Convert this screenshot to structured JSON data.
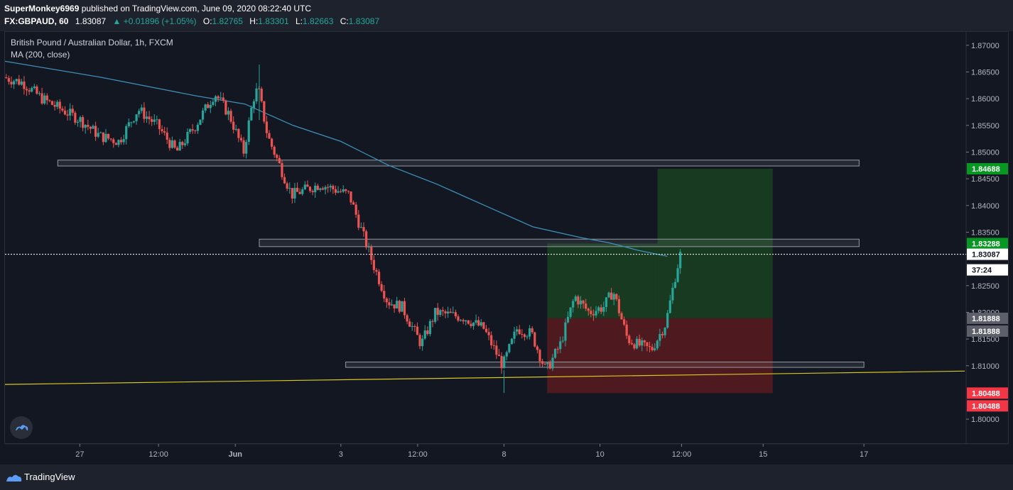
{
  "header": {
    "author": "SuperMonkey6969",
    "published": "published on TradingView.com, June 09, 2020 08:22:40 UTC",
    "symbol": "FX:GBPAUD, 60",
    "last": "1.83087",
    "change_arrow": "▲",
    "change": "+0.01896 (+1.05%)",
    "o_label": "O:",
    "o_value": "1.82765",
    "h_label": "H:",
    "h_value": "1.83301",
    "l_label": "L:",
    "l_value": "1.82663",
    "c_label": "C:",
    "c_value": "1.83087"
  },
  "legend": {
    "title": "British Pound / Australian Dollar, 1h, FXCM",
    "ma": "MA (200, close)"
  },
  "footer": {
    "brand": "TradingView"
  },
  "colors": {
    "background": "#131722",
    "up": "#26a69a",
    "down": "#ef5350",
    "ma": "#3d8fb8",
    "trendline": "#d8c623",
    "target_zone": "#1b5e20",
    "stop_zone": "#7f1d1d",
    "target_label": "#089722",
    "stop_label": "#f23645",
    "entry_label": "#5d606b"
  },
  "chart_data": {
    "type": "candlestick",
    "timeframe": "1h",
    "ylim": [
      1.7955,
      1.8725
    ],
    "price_ticks": [
      "1.87000",
      "1.86500",
      "1.86000",
      "1.85500",
      "1.85000",
      "1.84500",
      "1.84000",
      "1.83500",
      "1.82500",
      "1.82000",
      "1.81500",
      "1.81000",
      "1.80000"
    ],
    "x_ticks": [
      "27",
      "12:00",
      "Jun",
      "3",
      "12:00",
      "8",
      "10",
      "12:00",
      "15",
      "17"
    ],
    "key_path": [
      [
        0,
        1.864
      ],
      [
        0.02,
        1.863
      ],
      [
        0.04,
        1.86
      ],
      [
        0.06,
        1.858
      ],
      [
        0.08,
        1.856
      ],
      [
        0.1,
        1.853
      ],
      [
        0.12,
        1.852
      ],
      [
        0.14,
        1.858
      ],
      [
        0.16,
        1.855
      ],
      [
        0.18,
        1.85
      ],
      [
        0.2,
        1.855
      ],
      [
        0.22,
        1.861
      ],
      [
        0.235,
        1.857
      ],
      [
        0.25,
        1.85
      ],
      [
        0.26,
        1.86
      ],
      [
        0.265,
        1.862
      ],
      [
        0.275,
        1.853
      ],
      [
        0.3,
        1.842
      ],
      [
        0.33,
        1.844
      ],
      [
        0.36,
        1.842
      ],
      [
        0.385,
        1.829
      ],
      [
        0.4,
        1.822
      ],
      [
        0.415,
        1.821
      ],
      [
        0.435,
        1.814
      ],
      [
        0.45,
        1.82
      ],
      [
        0.48,
        1.819
      ],
      [
        0.5,
        1.817
      ],
      [
        0.52,
        1.81
      ],
      [
        0.535,
        1.817
      ],
      [
        0.55,
        1.816
      ],
      [
        0.565,
        1.809
      ],
      [
        0.58,
        1.814
      ],
      [
        0.595,
        1.823
      ],
      [
        0.61,
        1.82
      ],
      [
        0.625,
        1.821
      ],
      [
        0.635,
        1.824
      ],
      [
        0.65,
        1.815
      ],
      [
        0.66,
        1.814
      ],
      [
        0.675,
        1.813
      ],
      [
        0.69,
        1.818
      ],
      [
        0.7,
        1.827
      ],
      [
        0.705,
        1.8308
      ]
    ],
    "key_path_x_note": "fraction of the visible time axis",
    "key_levels": {
      "high": 1.8664,
      "low": 1.8049
    },
    "moving_average_200": [
      [
        0,
        1.867
      ],
      [
        0.1,
        1.864
      ],
      [
        0.2,
        1.8605
      ],
      [
        0.25,
        1.859
      ],
      [
        0.3,
        1.855
      ],
      [
        0.35,
        1.852
      ],
      [
        0.4,
        1.8475
      ],
      [
        0.45,
        1.844
      ],
      [
        0.5,
        1.84
      ],
      [
        0.55,
        1.836
      ],
      [
        0.6,
        1.834
      ],
      [
        0.63,
        1.833
      ],
      [
        0.66,
        1.8316
      ],
      [
        0.69,
        1.8305
      ]
    ],
    "zones": [
      {
        "name": "resistance-zone-upper",
        "x": [
          0.055,
          0.89
        ],
        "y": [
          1.8474,
          1.8485
        ]
      },
      {
        "name": "resistance-zone-middle",
        "x": [
          0.265,
          0.89
        ],
        "y": [
          1.8323,
          1.8337
        ]
      },
      {
        "name": "support-zone-lower",
        "x": [
          0.355,
          0.895
        ],
        "y": [
          1.8097,
          1.8107
        ]
      }
    ],
    "trendline": {
      "from": [
        0,
        1.8065
      ],
      "to": [
        1,
        1.809
      ]
    },
    "position": {
      "type": "long",
      "entry": 1.81888,
      "target": 1.84688,
      "stop": 1.80488,
      "secondary_target": 1.83288,
      "box_start": 0.565,
      "box_end": 0.8,
      "secondary_box_end": 0.68
    },
    "current_price": 1.83087,
    "countdown": "37:24",
    "price_labels": [
      {
        "text": "1.84688",
        "kind": "target"
      },
      {
        "text": "1.83288",
        "kind": "target"
      },
      {
        "text": "1.83087",
        "kind": "current"
      },
      {
        "text": "37:24",
        "kind": "countdown"
      },
      {
        "text": "1.81888",
        "kind": "entry"
      },
      {
        "text": "1.81888",
        "kind": "entry2"
      },
      {
        "text": "1.80488",
        "kind": "stop"
      },
      {
        "text": "1.80488",
        "kind": "stop2"
      }
    ]
  }
}
